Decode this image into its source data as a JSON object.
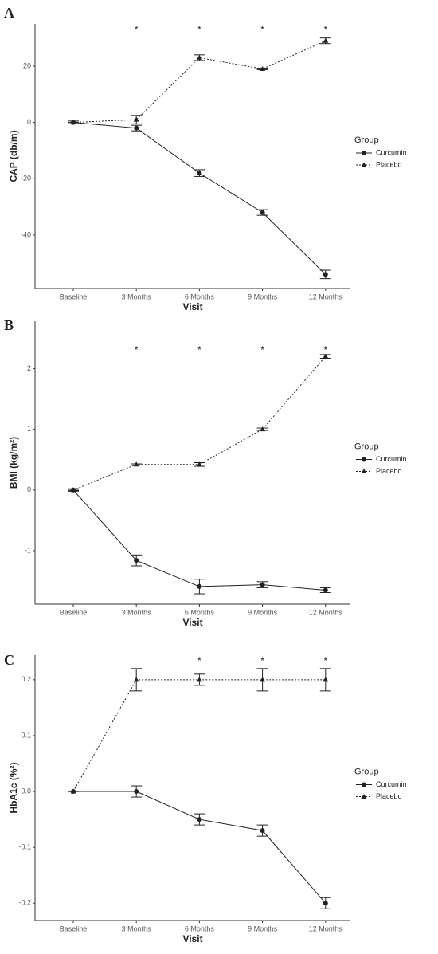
{
  "chart_data": [
    {
      "type": "line",
      "panel_label": "A",
      "ylabel": "CAP (db/m)",
      "xlabel": "Visit",
      "categories": [
        "Baseline",
        "3 Months",
        "6 Months",
        "9 Months",
        "12 Months"
      ],
      "ylim": [
        -59,
        35
      ],
      "yticks": [
        20,
        0,
        -20,
        -40
      ],
      "legend_title": "Group",
      "series": [
        {
          "name": "Curcumin",
          "color": "#222222",
          "marker": "circle",
          "dash": "solid",
          "values": [
            0,
            -2,
            -18,
            -32,
            -54
          ],
          "errors": [
            0.5,
            1,
            1.2,
            1,
            1.5
          ]
        },
        {
          "name": "Placebo",
          "color": "#222222",
          "marker": "triangle",
          "dash": "dotted",
          "values": [
            0,
            1,
            23,
            19,
            29
          ],
          "errors": [
            0,
            1.5,
            1,
            0.3,
            1
          ]
        }
      ],
      "significance": [
        null,
        "*",
        "*",
        "*",
        "*"
      ]
    },
    {
      "type": "line",
      "panel_label": "B",
      "ylabel": "BMI (kg/m²)",
      "xlabel": "Visit",
      "categories": [
        "Baseline",
        "3 Months",
        "6 Months",
        "9 Months",
        "12 Months"
      ],
      "ylim": [
        -1.88,
        2.78
      ],
      "yticks": [
        2,
        1,
        0,
        -1
      ],
      "legend_title": "Group",
      "series": [
        {
          "name": "Curcumin",
          "color": "#222222",
          "marker": "circle",
          "dash": "solid",
          "values": [
            0,
            -1.16,
            -1.59,
            -1.56,
            -1.65
          ],
          "errors": [
            0.02,
            0.09,
            0.12,
            0.05,
            0.04
          ]
        },
        {
          "name": "Placebo",
          "color": "#222222",
          "marker": "triangle",
          "dash": "dotted",
          "values": [
            0,
            0.42,
            0.42,
            1.0,
            2.2
          ],
          "errors": [
            0.01,
            0.01,
            0.03,
            0.02,
            0.03
          ]
        }
      ],
      "significance": [
        null,
        "*",
        "*",
        "*",
        "*"
      ]
    },
    {
      "type": "line",
      "panel_label": "C",
      "ylabel": "HbA1c (%²)",
      "xlabel": "Visit",
      "categories": [
        "Baseline",
        "3 Months",
        "6 Months",
        "9 Months",
        "12 Months"
      ],
      "ylim": [
        -0.231,
        0.244
      ],
      "yticks": [
        0.2,
        0.1,
        {
          "value": 0,
          "label": "0.0"
        },
        -0.1,
        -0.2
      ],
      "legend_title": "Group",
      "series": [
        {
          "name": "Curcumin",
          "color": "#222222",
          "marker": "circle",
          "dash": "solid",
          "values": [
            0,
            0,
            -0.05,
            -0.07,
            -0.2
          ],
          "errors": [
            0,
            0.01,
            0.01,
            0.01,
            0.01
          ]
        },
        {
          "name": "Placebo",
          "color": "#222222",
          "marker": "triangle",
          "dash": "dotted",
          "values": [
            0,
            0.2,
            0.2,
            0.2,
            0.2
          ],
          "errors": [
            0,
            0.02,
            0.01,
            0.02,
            0.02
          ]
        }
      ],
      "significance": [
        null,
        null,
        "*",
        "*",
        "*"
      ]
    }
  ]
}
